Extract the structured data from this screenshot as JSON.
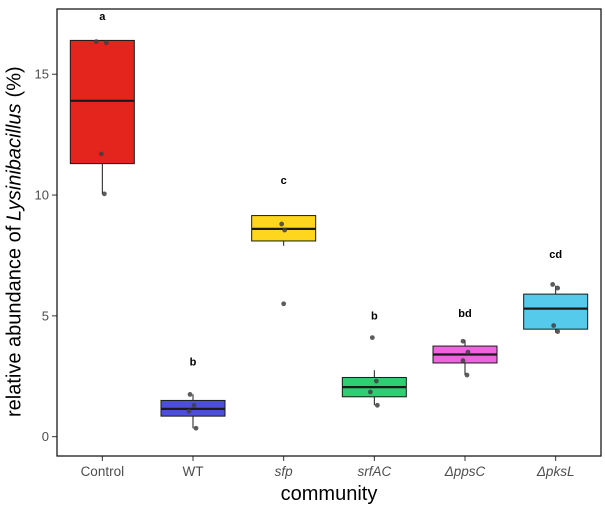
{
  "figure": {
    "ylabel": {
      "prefix": "relative abundance of ",
      "italic": "Lysinibacillus",
      "suffix": " (%)"
    },
    "xlabel": "community"
  },
  "chart_data": {
    "type": "boxplot",
    "title": "",
    "xlabel": "community",
    "ylabel": "relative abundance of Lysinibacillus (%)",
    "ylim": [
      -0.8,
      17.7
    ],
    "yticks": [
      0,
      5,
      10,
      15
    ],
    "grid": false,
    "legend": "none",
    "point_color": "#3f3f3f",
    "groups": [
      {
        "label": "Control",
        "italic": false,
        "letter": "a",
        "letter_y": 17.25,
        "color": "#E3251E",
        "lo": 10.05,
        "q1": 11.3,
        "median": 13.9,
        "q3": 16.4,
        "hi": 16.4,
        "points": [
          16.3,
          16.35,
          11.7,
          10.05
        ],
        "jitter": [
          4,
          -6,
          -1,
          2
        ]
      },
      {
        "label": "WT",
        "italic": false,
        "letter": "b",
        "letter_y": 2.95,
        "color": "#4D4FD9",
        "lo": 0.35,
        "q1": 0.85,
        "median": 1.15,
        "q3": 1.5,
        "hi": 1.75,
        "points": [
          1.75,
          1.3,
          1.05,
          0.35
        ],
        "jitter": [
          -3,
          1,
          -4,
          3
        ]
      },
      {
        "label": "sfp",
        "italic": true,
        "letter": "c",
        "letter_y": 10.45,
        "color": "#FFD61E",
        "lo": 7.9,
        "q1": 8.1,
        "median": 8.6,
        "q3": 9.15,
        "hi": 9.15,
        "points": [
          8.8,
          8.55,
          5.5
        ],
        "jitter": [
          -2,
          1,
          0
        ]
      },
      {
        "label": "srfAC",
        "italic": true,
        "letter": "b",
        "letter_y": 4.85,
        "color": "#30CE70",
        "lo": 1.3,
        "q1": 1.65,
        "median": 2.05,
        "q3": 2.45,
        "hi": 2.75,
        "points": [
          4.1,
          2.3,
          1.85,
          1.3
        ],
        "jitter": [
          -2,
          2,
          -4,
          3
        ]
      },
      {
        "label": "ΔppsC",
        "italic": true,
        "letter": "bd",
        "letter_y": 4.95,
        "color": "#EF63DF",
        "lo": 2.55,
        "q1": 3.05,
        "median": 3.4,
        "q3": 3.75,
        "hi": 4.0,
        "points": [
          3.95,
          3.5,
          3.15,
          2.55
        ],
        "jitter": [
          -2,
          3,
          -2,
          2
        ]
      },
      {
        "label": "ΔpksL",
        "italic": true,
        "letter": "cd",
        "letter_y": 7.4,
        "color": "#55CAEB",
        "lo": 4.3,
        "q1": 4.45,
        "median": 5.3,
        "q3": 5.9,
        "hi": 6.25,
        "points": [
          6.3,
          6.15,
          4.6,
          4.35
        ],
        "jitter": [
          -3,
          2,
          -2,
          2
        ]
      }
    ]
  }
}
